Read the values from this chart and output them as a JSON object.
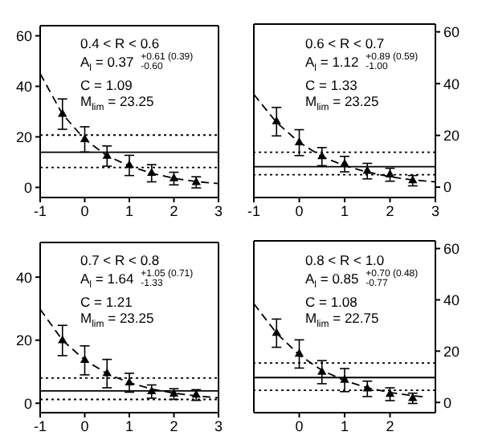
{
  "chart_data": [
    {
      "type": "scatter",
      "x": [
        -0.5,
        0,
        0.5,
        1,
        1.5,
        2,
        2.5
      ],
      "xlim": [
        -1,
        3
      ],
      "xticks": [
        -1,
        0,
        1,
        2,
        3
      ],
      "ylim": [
        -4,
        64
      ],
      "yticks": [
        0,
        20,
        40,
        60
      ],
      "marker": "triangle",
      "series": [
        {
          "color": "#000000",
          "values": [
            29,
            19,
            12.4,
            8.7,
            5.6,
            3.5,
            2
          ],
          "errors": [
            6,
            5,
            4,
            4,
            3.4,
            2.5,
            2.2
          ]
        },
        {
          "type": "line",
          "line_style": "dashed",
          "marker": "none",
          "color": "#000000",
          "x": [
            -1,
            -0.5,
            0,
            0.5,
            1,
            1.5,
            2,
            2.5,
            3
          ],
          "values": [
            45,
            29,
            19,
            12.5,
            8.5,
            5.6,
            3.6,
            2.3,
            1.5
          ]
        }
      ],
      "ref_lines": [
        {
          "axis": "y",
          "value": 13.9,
          "line_style": "solid"
        },
        {
          "axis": "y",
          "value": 20.7,
          "line_style": "dotted"
        },
        {
          "axis": "y",
          "value": 7.9,
          "line_style": "dotted"
        }
      ],
      "annotations": [
        "0.4 < R < 0.6",
        "A$_{l}$ = 0.37 $^{+0.61 (0.39)}$$_{-0.60}$",
        "C = 1.09",
        "M$_{lim}$ = 23.25"
      ]
    },
    {
      "type": "scatter",
      "x": [
        -0.5,
        0,
        0.5,
        1,
        1.5,
        2,
        2.5
      ],
      "xlim": [
        -1,
        3
      ],
      "xticks": [
        -1,
        0,
        1,
        2,
        3
      ],
      "ylim": [
        -4,
        63
      ],
      "yticks": [
        0,
        20,
        40,
        60
      ],
      "marker": "triangle",
      "series": [
        {
          "color": "#000000",
          "values": [
            25.3,
            17.2,
            11.8,
            8.9,
            6.2,
            4.8,
            2.5
          ],
          "errors": [
            5.5,
            5,
            3.5,
            3,
            3,
            2.5,
            2
          ]
        },
        {
          "type": "line",
          "line_style": "dashed",
          "marker": "none",
          "color": "#000000",
          "x": [
            -1,
            -0.5,
            0,
            0.5,
            1,
            1.5,
            2,
            2.5,
            3
          ],
          "values": [
            35.8,
            25,
            17.3,
            11.8,
            8.3,
            5.8,
            4,
            2.8,
            2
          ]
        }
      ],
      "ref_lines": [
        {
          "axis": "y",
          "value": 7.9,
          "line_style": "solid"
        },
        {
          "axis": "y",
          "value": 13.5,
          "line_style": "dotted"
        },
        {
          "axis": "y",
          "value": 4.8,
          "line_style": "dotted"
        }
      ],
      "annotations": [
        "0.6 < R < 0.7",
        "A$_{l}$ = 1.12 $^{+0.89 (0.59)}$$_{-1.00}$",
        "C = 1.33",
        "M$_{lim}$ = 23.25"
      ]
    },
    {
      "type": "scatter",
      "x": [
        -0.5,
        0,
        0.5,
        1,
        1.5,
        2,
        2.5
      ],
      "xlim": [
        -1,
        3
      ],
      "xticks": [
        -1,
        0,
        1,
        2,
        3
      ],
      "ylim": [
        -3,
        51
      ],
      "yticks": [
        0,
        20,
        40
      ],
      "marker": "triangle",
      "series": [
        {
          "color": "#000000",
          "values": [
            19.9,
            13.6,
            9.4,
            6.5,
            3.7,
            2.9,
            2.6
          ],
          "errors": [
            4.8,
            4.6,
            4.5,
            3,
            2.1,
            1.7,
            1.7
          ]
        },
        {
          "type": "line",
          "line_style": "dashed",
          "marker": "none",
          "color": "#000000",
          "x": [
            -1,
            -0.5,
            0,
            0.5,
            1,
            1.5,
            2,
            2.5,
            3
          ],
          "values": [
            29.8,
            20,
            13.7,
            9.4,
            6.5,
            4.5,
            3.2,
            2.3,
            1.7
          ]
        }
      ],
      "ref_lines": [
        {
          "axis": "y",
          "value": 3.9,
          "line_style": "solid"
        },
        {
          "axis": "y",
          "value": 8,
          "line_style": "dotted"
        },
        {
          "axis": "y",
          "value": 1.2,
          "line_style": "dotted"
        }
      ],
      "annotations": [
        "0.7 < R < 0.8",
        "A$_{l}$ = 1.64 $^{+1.05 (0.71)}$$_{-1.33}$",
        "C = 1.21",
        "M$_{lim}$ = 23.25"
      ]
    },
    {
      "type": "scatter",
      "x": [
        -0.5,
        0,
        0.5,
        1,
        1.5,
        2,
        2.5
      ],
      "xlim": [
        -1,
        3
      ],
      "xticks": [
        0,
        1,
        2
      ],
      "ylim": [
        -4,
        63
      ],
      "yticks": [
        0,
        20,
        40,
        60
      ],
      "marker": "triangle",
      "series": [
        {
          "color": "#000000",
          "values": [
            27,
            18.9,
            11.8,
            8.7,
            5.3,
            3.2,
            1.6
          ],
          "errors": [
            5.5,
            5.5,
            4.5,
            4.5,
            3,
            2.5,
            2
          ]
        },
        {
          "type": "line",
          "line_style": "dashed",
          "marker": "none",
          "color": "#000000",
          "x": [
            -1,
            -0.5,
            0,
            0.5,
            1,
            1.5,
            2,
            2.5,
            2.75
          ],
          "values": [
            38.5,
            27,
            18.5,
            12.5,
            8.5,
            5.7,
            3.9,
            2.6,
            2.2
          ]
        }
      ],
      "ref_lines": [
        {
          "axis": "y",
          "value": 9.7,
          "line_style": "solid"
        },
        {
          "axis": "y",
          "value": 15.4,
          "line_style": "dotted"
        },
        {
          "axis": "y",
          "value": 4.7,
          "line_style": "dotted"
        }
      ],
      "annotations": [
        "0.8 < R < 1.0",
        "A$_{l}$ = 0.85 $^{+0.70 (0.48)}$$_{-0.77}$",
        "C = 1.08",
        "M$_{lim}$ = 22.75"
      ]
    }
  ]
}
